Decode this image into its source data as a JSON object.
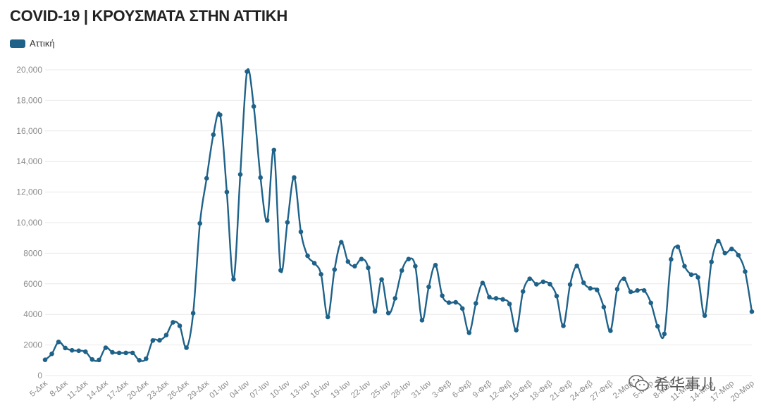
{
  "title": "COVID-19 | ΚΡΟΥΣΜΑΤΑ ΣΤΗΝ ΑΤΤΙΚΗ",
  "colors": {
    "series": "#1f6289",
    "grid": "#e9e9e9",
    "tick_text": "#8a8a8a"
  },
  "watermark": {
    "text": "希华事儿",
    "icon": "wechat-icon"
  },
  "chart_data": {
    "type": "line",
    "title": "COVID-19 | ΚΡΟΥΣΜΑΤΑ ΣΤΗΝ ΑΤΤΙΚΗ",
    "xlabel": "",
    "ylabel": "",
    "ylim": [
      0,
      20000
    ],
    "yticks": [
      "0",
      "2000",
      "4000",
      "6000",
      "8000",
      "10,000",
      "12,000",
      "14,000",
      "16,000",
      "18,000",
      "20,000"
    ],
    "grid": true,
    "legend_position": "top-left",
    "x_tick_labels": [
      "5-Δεκ",
      "8-Δεκ",
      "11-Δεκ",
      "14-Δεκ",
      "17-Δεκ",
      "20-Δεκ",
      "23-Δεκ",
      "26-Δεκ",
      "29-Δεκ",
      "01-Ιαν",
      "04-Ιαν",
      "07-Ιαν",
      "10-Ιαν",
      "13-Ιαν",
      "16-Ιαν",
      "19-Ιαν",
      "22-Ιαν",
      "25-Ιαν",
      "28-Ιαν",
      "31-Ιαν",
      "3-Φεβ",
      "6-Φεβ",
      "9-Φεβ",
      "12-Φεβ",
      "15-Φεβ",
      "18-Φεβ",
      "21-Φεβ",
      "24-Φεβ",
      "27-Φεβ",
      "2-Μαρ",
      "5-Μαρ",
      "8-Μαρ",
      "11-Μαρ",
      "14-Μαρ",
      "17-Μαρ",
      "20-Μαρ"
    ],
    "series": [
      {
        "name": "Αττική",
        "color": "#1f6289",
        "values": [
          1030,
          1420,
          2200,
          1800,
          1650,
          1620,
          1560,
          1050,
          1020,
          1820,
          1520,
          1480,
          1480,
          1480,
          1000,
          1100,
          2290,
          2300,
          2650,
          3480,
          3250,
          1820,
          4080,
          9950,
          12900,
          15750,
          17050,
          12000,
          6300,
          13150,
          19880,
          17600,
          12950,
          10150,
          14750,
          6880,
          10020,
          12950,
          9400,
          7830,
          7350,
          6620,
          3830,
          6930,
          8720,
          7450,
          7150,
          7620,
          7050,
          4200,
          6280,
          4090,
          5050,
          6870,
          7620,
          7150,
          3620,
          5800,
          7220,
          5220,
          4770,
          4790,
          4380,
          2800,
          4720,
          6050,
          5130,
          5050,
          4980,
          4680,
          2970,
          5500,
          6330,
          5970,
          6130,
          5980,
          5200,
          3250,
          5950,
          7170,
          6070,
          5700,
          5600,
          4480,
          2930,
          5650,
          6330,
          5480,
          5560,
          5560,
          4750,
          3220,
          2720,
          7600,
          8420,
          7150,
          6600,
          6420,
          3920,
          7430,
          8800,
          8010,
          8280,
          7870,
          6800,
          4180
        ]
      }
    ]
  }
}
